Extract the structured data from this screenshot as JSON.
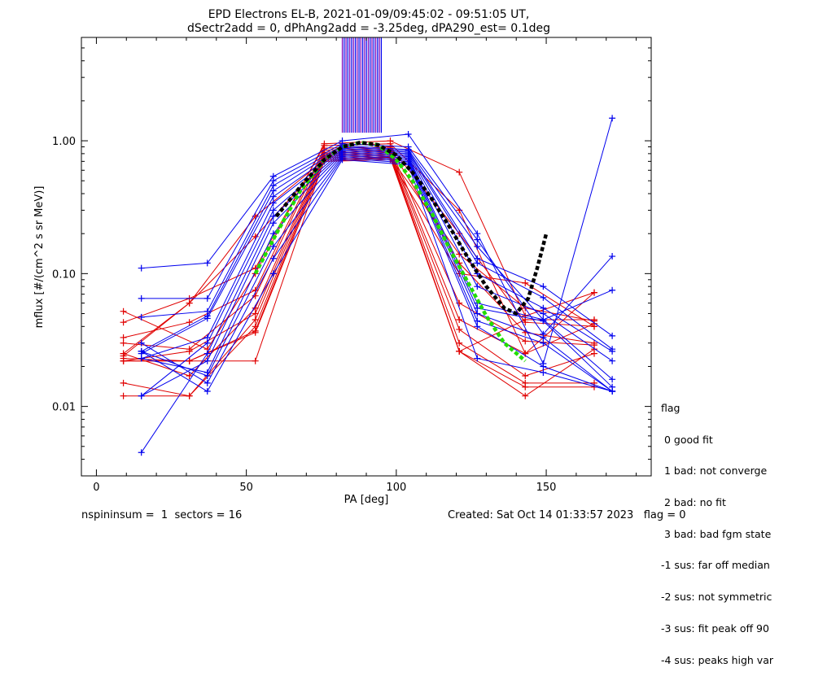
{
  "chart_data": {
    "type": "line",
    "title_line1": "EPD Electrons EL-B, 2021-01-09/09:45:02 - 09:51:05 UT,",
    "title_line2": "dSectr2add = 0, dPhAng2add = -3.25deg, dPA290_est=   0.1deg",
    "xlabel": "PA [deg]",
    "ylabel": "mflux [#/(cm^2 s sr MeV)]",
    "xlim": [
      -5,
      185
    ],
    "ylim": [
      0.003,
      6.0
    ],
    "yscale": "log",
    "xticks": [
      0,
      50,
      100,
      150
    ],
    "xtick_labels": [
      "0",
      "50",
      "100",
      "150"
    ],
    "yticks": [
      0.01,
      0.1,
      1.0
    ],
    "ytick_labels": [
      "0.01",
      "0.10",
      "1.00"
    ],
    "grid": false,
    "pa_bins": [
      9,
      15,
      31,
      37,
      53,
      59,
      76,
      82,
      98,
      104,
      121,
      127,
      143,
      149,
      166,
      172
    ],
    "colors": {
      "red": "#e00000",
      "blue": "#0000ee",
      "purple": "#7a00b8",
      "fit_median": "#000000",
      "fit_green": "#22dd00"
    },
    "red_series": [
      {
        "x": [
          9,
          37,
          53,
          76,
          98,
          121,
          143,
          166
        ],
        "y": [
          0.052,
          0.027,
          0.1,
          0.95,
          1.0,
          0.58,
          0.048,
          0.072
        ]
      },
      {
        "x": [
          9,
          31,
          53,
          76,
          98,
          121,
          143,
          166
        ],
        "y": [
          0.043,
          0.065,
          0.11,
          0.92,
          0.95,
          0.3,
          0.025,
          0.072
        ]
      },
      {
        "x": [
          9,
          31,
          53,
          76,
          98,
          121,
          143,
          166
        ],
        "y": [
          0.033,
          0.043,
          0.075,
          0.88,
          0.9,
          0.2,
          0.043,
          0.04
        ]
      },
      {
        "x": [
          9,
          31,
          53,
          76,
          98,
          121,
          143,
          166
        ],
        "y": [
          0.03,
          0.027,
          0.068,
          0.85,
          0.88,
          0.12,
          0.036,
          0.03
        ]
      },
      {
        "x": [
          9,
          31,
          53,
          76,
          98,
          121,
          143,
          166
        ],
        "y": [
          0.025,
          0.017,
          0.055,
          0.82,
          0.86,
          0.06,
          0.031,
          0.029
        ]
      },
      {
        "x": [
          9,
          31,
          53,
          76,
          98,
          121,
          143,
          166
        ],
        "y": [
          0.022,
          0.026,
          0.05,
          0.8,
          0.84,
          0.045,
          0.025,
          0.042
        ]
      },
      {
        "x": [
          9,
          31,
          53,
          76,
          98,
          121,
          143,
          166
        ],
        "y": [
          0.015,
          0.012,
          0.045,
          0.78,
          0.82,
          0.038,
          0.017,
          0.025
        ]
      },
      {
        "x": [
          9,
          31,
          53,
          76,
          98,
          121,
          143,
          166
        ],
        "y": [
          0.012,
          0.012,
          0.04,
          0.76,
          0.8,
          0.03,
          0.015,
          0.015
        ]
      },
      {
        "x": [
          9,
          31,
          53,
          76,
          98,
          121,
          143,
          166
        ],
        "y": [
          0.022,
          0.022,
          0.037,
          0.74,
          0.78,
          0.026,
          0.014,
          0.014
        ]
      },
      {
        "x": [
          9,
          31,
          53,
          76,
          98,
          121,
          143,
          166
        ],
        "y": [
          0.022,
          0.022,
          0.022,
          0.72,
          0.76,
          0.026,
          0.012,
          0.027
        ]
      },
      {
        "x": [
          9,
          31,
          53,
          76,
          98,
          121,
          143,
          166
        ],
        "y": [
          0.023,
          0.022,
          0.036,
          0.7,
          0.74,
          0.026,
          0.045,
          0.045
        ]
      },
      {
        "x": [
          9,
          31,
          53,
          76,
          98,
          121,
          143,
          166
        ],
        "y": [
          0.024,
          0.06,
          0.19,
          0.7,
          0.72,
          0.1,
          0.085,
          0.04
        ]
      },
      {
        "x": [
          9,
          31,
          53,
          76,
          98,
          121,
          143,
          166
        ],
        "y": [
          0.025,
          0.06,
          0.27,
          0.72,
          0.75,
          0.14,
          0.055,
          0.044
        ]
      }
    ],
    "blue_series": [
      {
        "x": [
          15,
          37,
          59,
          82,
          104,
          127,
          149,
          172
        ],
        "y": [
          0.11,
          0.12,
          0.54,
          1.0,
          1.12,
          0.2,
          0.021,
          1.48
        ]
      },
      {
        "x": [
          15,
          37,
          59,
          82,
          104,
          127,
          149,
          172
        ],
        "y": [
          0.065,
          0.065,
          0.5,
          0.95,
          0.9,
          0.18,
          0.035,
          0.135
        ]
      },
      {
        "x": [
          15,
          37,
          59,
          82,
          104,
          127,
          149,
          172
        ],
        "y": [
          0.047,
          0.052,
          0.46,
          0.92,
          0.86,
          0.16,
          0.045,
          0.075
        ]
      },
      {
        "x": [
          15,
          37,
          59,
          82,
          104,
          127,
          149,
          172
        ],
        "y": [
          0.026,
          0.048,
          0.42,
          0.9,
          0.84,
          0.13,
          0.08,
          0.034
        ]
      },
      {
        "x": [
          15,
          37,
          59,
          82,
          104,
          127,
          149,
          172
        ],
        "y": [
          0.025,
          0.046,
          0.38,
          0.88,
          0.82,
          0.12,
          0.066,
          0.027
        ]
      },
      {
        "x": [
          15,
          37,
          59,
          82,
          104,
          127,
          149,
          172
        ],
        "y": [
          0.023,
          0.033,
          0.34,
          0.86,
          0.8,
          0.1,
          0.055,
          0.026
        ]
      },
      {
        "x": [
          15,
          37,
          59,
          82,
          104,
          127,
          149,
          172
        ],
        "y": [
          0.012,
          0.03,
          0.3,
          0.84,
          0.78,
          0.08,
          0.05,
          0.022
        ]
      },
      {
        "x": [
          15,
          37,
          59,
          82,
          104,
          127,
          149,
          172
        ],
        "y": [
          0.0045,
          0.025,
          0.27,
          0.82,
          0.76,
          0.06,
          0.045,
          0.016
        ]
      },
      {
        "x": [
          15,
          37,
          59,
          82,
          104,
          127,
          149,
          172
        ],
        "y": [
          0.012,
          0.022,
          0.24,
          0.8,
          0.74,
          0.055,
          0.044,
          0.014
        ]
      },
      {
        "x": [
          15,
          37,
          59,
          82,
          104,
          127,
          149,
          172
        ],
        "y": [
          0.023,
          0.018,
          0.2,
          0.78,
          0.72,
          0.05,
          0.033,
          0.013
        ]
      },
      {
        "x": [
          15,
          37,
          59,
          82,
          104,
          127,
          149,
          172
        ],
        "y": [
          0.026,
          0.017,
          0.16,
          0.76,
          0.7,
          0.044,
          0.03,
          0.013
        ]
      },
      {
        "x": [
          15,
          37,
          59,
          82,
          104,
          127,
          149,
          172
        ],
        "y": [
          0.03,
          0.015,
          0.13,
          0.74,
          0.68,
          0.04,
          0.02,
          0.013
        ]
      },
      {
        "x": [
          15,
          37,
          59,
          82,
          104,
          127,
          149,
          172
        ],
        "y": [
          0.026,
          0.013,
          0.1,
          0.72,
          0.66,
          0.023,
          0.018,
          0.013
        ]
      }
    ],
    "fit_median": {
      "x": [
        60,
        68,
        76,
        82,
        88,
        94,
        100,
        106,
        112,
        118,
        124,
        130,
        136,
        140,
        144,
        147,
        150
      ],
      "y": [
        0.27,
        0.45,
        0.72,
        0.9,
        0.97,
        0.93,
        0.78,
        0.56,
        0.36,
        0.22,
        0.13,
        0.08,
        0.055,
        0.05,
        0.065,
        0.11,
        0.2
      ]
    },
    "fit_green": {
      "x": [
        53,
        60,
        68,
        76,
        82,
        88,
        94,
        100,
        106,
        112,
        118,
        124,
        130,
        136,
        143
      ],
      "y": [
        0.1,
        0.2,
        0.42,
        0.72,
        0.9,
        0.97,
        0.93,
        0.72,
        0.48,
        0.28,
        0.15,
        0.085,
        0.048,
        0.03,
        0.022
      ]
    },
    "marker_lines": {
      "x_start": 82,
      "x_end": 95,
      "count": 22,
      "y_bottom": 1.15,
      "y_top": 6.0
    }
  },
  "legend": {
    "title": "flag",
    "items": [
      " 0 good fit",
      " 1 bad: not converge",
      " 2 bad: no fit",
      " 3 bad: bad fgm state",
      "-1 sus: far off median",
      "-2 sus: not symmetric",
      "-3 sus: fit peak off 90",
      "-4 sus: peaks high var"
    ]
  },
  "footer": {
    "left": "nspininsum =  1  sectors = 16",
    "right": "Created: Sat Oct 14 01:33:57 2023   flag = 0"
  }
}
